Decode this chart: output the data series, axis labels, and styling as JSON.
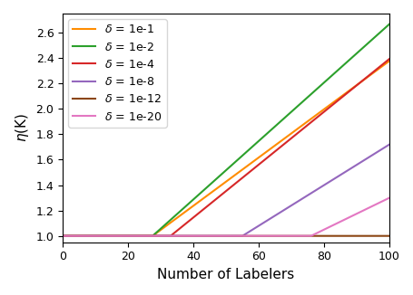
{
  "deltas": [
    0.1,
    0.01,
    0.0001,
    1e-08,
    1e-12,
    1e-20
  ],
  "delta_labels": [
    "1e-1",
    "1e-2",
    "1e-4",
    "1e-8",
    "1e-12",
    "1e-20"
  ],
  "colors": [
    "#FF8C00",
    "#2CA02C",
    "#D62728",
    "#9467BD",
    "#8B4513",
    "#E377C2"
  ],
  "formula_C": 11.45,
  "xlabel": "Number of Labelers",
  "ylabel": "$\\eta$(K)",
  "ylim": [
    0.95,
    2.75
  ],
  "xlim": [
    0,
    100
  ],
  "legend_loc": "upper left"
}
